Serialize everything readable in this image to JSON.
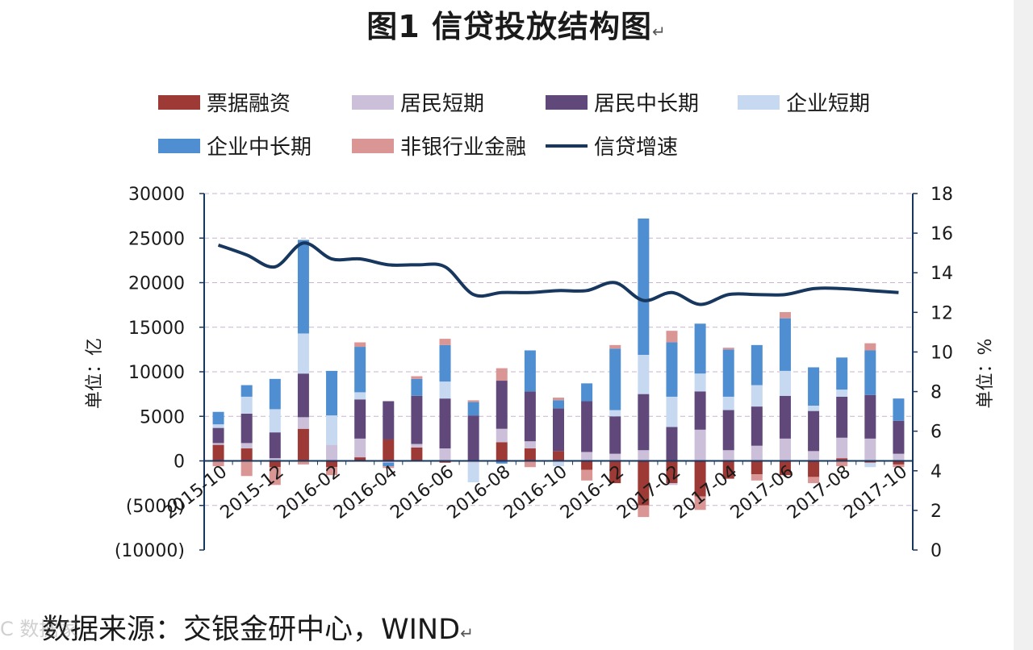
{
  "title": "图1 信贷投放结构图",
  "return_mark": "↵",
  "source": "数据来源：交银金研中心，WIND",
  "watermark": "C 数据家",
  "chart_data": {
    "type": "bar",
    "title": "图1 信贷投放结构图",
    "ylabel_left": "单位：亿",
    "ylabel_right": "单位：%",
    "ylim_left": [
      -10000,
      30000
    ],
    "ylim_right": [
      0,
      18
    ],
    "left_ticks": [
      "30000",
      "25000",
      "20000",
      "15000",
      "10000",
      "5000",
      "0",
      "(5000)",
      "(10000)"
    ],
    "left_tick_values": [
      30000,
      25000,
      20000,
      15000,
      10000,
      5000,
      0,
      -5000,
      -10000
    ],
    "right_ticks": [
      "18",
      "16",
      "14",
      "12",
      "10",
      "8",
      "6",
      "4",
      "2",
      "0"
    ],
    "right_tick_values": [
      18,
      16,
      14,
      12,
      10,
      8,
      6,
      4,
      2,
      0
    ],
    "months": [
      "2015-10",
      "2015-11",
      "2015-12",
      "2016-01",
      "2016-02",
      "2016-03",
      "2016-04",
      "2016-05",
      "2016-06",
      "2016-07",
      "2016-08",
      "2016-09",
      "2016-10",
      "2016-11",
      "2016-12",
      "2017-01",
      "2017-02",
      "2017-03",
      "2017-04",
      "2017-05",
      "2017-06",
      "2017-07",
      "2017-08",
      "2017-09",
      "2017-10"
    ],
    "x_tick_labels": [
      "2015-10",
      "2015-12",
      "2016-02",
      "2016-04",
      "2016-06",
      "2016-08",
      "2016-10",
      "2016-12",
      "2017-02",
      "2017-04",
      "2017-06",
      "2017-08",
      "2017-10"
    ],
    "x_tick_indices": [
      0,
      2,
      4,
      6,
      8,
      10,
      12,
      14,
      16,
      18,
      20,
      22,
      24
    ],
    "colors": {
      "票据融资": "#9e3a36",
      "居民短期": "#cbbfd9",
      "居民中长期": "#60497a",
      "企业短期": "#c6d9f0",
      "企业中长期": "#4f8ed1",
      "非银行业金融": "#d99694",
      "信贷增速": "#17375e"
    },
    "legend": [
      "票据融资",
      "居民短期",
      "居民中长期",
      "企业短期",
      "企业中长期",
      "非银行业金融",
      "信贷增速"
    ],
    "series": [
      {
        "name": "票据融资",
        "values": [
          1800,
          1400,
          -700,
          3600,
          -700,
          400,
          2400,
          1500,
          -200,
          -100,
          2100,
          1400,
          1100,
          -1000,
          -2500,
          -5000,
          -2500,
          -4000,
          -2000,
          -1500,
          -1600,
          -1800,
          300,
          -200,
          -400
        ]
      },
      {
        "name": "居民短期",
        "values": [
          200,
          600,
          300,
          1300,
          1800,
          2100,
          -200,
          400,
          1400,
          -100,
          1500,
          800,
          -100,
          1000,
          800,
          1200,
          -200,
          3500,
          1200,
          1700,
          2500,
          1100,
          2300,
          2500,
          800
        ]
      },
      {
        "name": "居民中长期",
        "values": [
          1700,
          3300,
          2900,
          4900,
          0,
          4400,
          4300,
          5400,
          5600,
          5100,
          5400,
          5600,
          4800,
          5700,
          4200,
          6300,
          3800,
          4300,
          4500,
          4400,
          4800,
          4500,
          4600,
          4900,
          3700
        ]
      },
      {
        "name": "企业短期",
        "values": [
          400,
          1900,
          2600,
          4500,
          3300,
          800,
          0,
          0,
          1900,
          -2200,
          0,
          0,
          -500,
          0,
          700,
          4400,
          3400,
          2000,
          1500,
          2400,
          2800,
          600,
          800,
          -500,
          0
        ]
      },
      {
        "name": "企业中长期",
        "values": [
          1400,
          1300,
          3400,
          10500,
          5000,
          5100,
          -400,
          1900,
          4100,
          1500,
          -300,
          4600,
          900,
          2000,
          6900,
          15300,
          6100,
          5600,
          5300,
          4500,
          5900,
          4300,
          3600,
          5000,
          2500
        ]
      },
      {
        "name": "非银行业金融",
        "values": [
          -600,
          -1700,
          -2000,
          -400,
          -900,
          500,
          -200,
          300,
          700,
          200,
          1400,
          -700,
          300,
          -1200,
          400,
          -1300,
          1300,
          -1500,
          200,
          -700,
          700,
          -700,
          -600,
          800,
          -300
        ]
      }
    ],
    "line": {
      "name": "信贷增速",
      "values": [
        15.4,
        14.9,
        14.3,
        15.5,
        14.7,
        14.7,
        14.4,
        14.4,
        14.3,
        12.9,
        13.0,
        13.0,
        13.1,
        13.1,
        13.5,
        12.6,
        13.0,
        12.4,
        12.9,
        12.9,
        12.9,
        13.2,
        13.2,
        13.1,
        13.0
      ]
    }
  }
}
